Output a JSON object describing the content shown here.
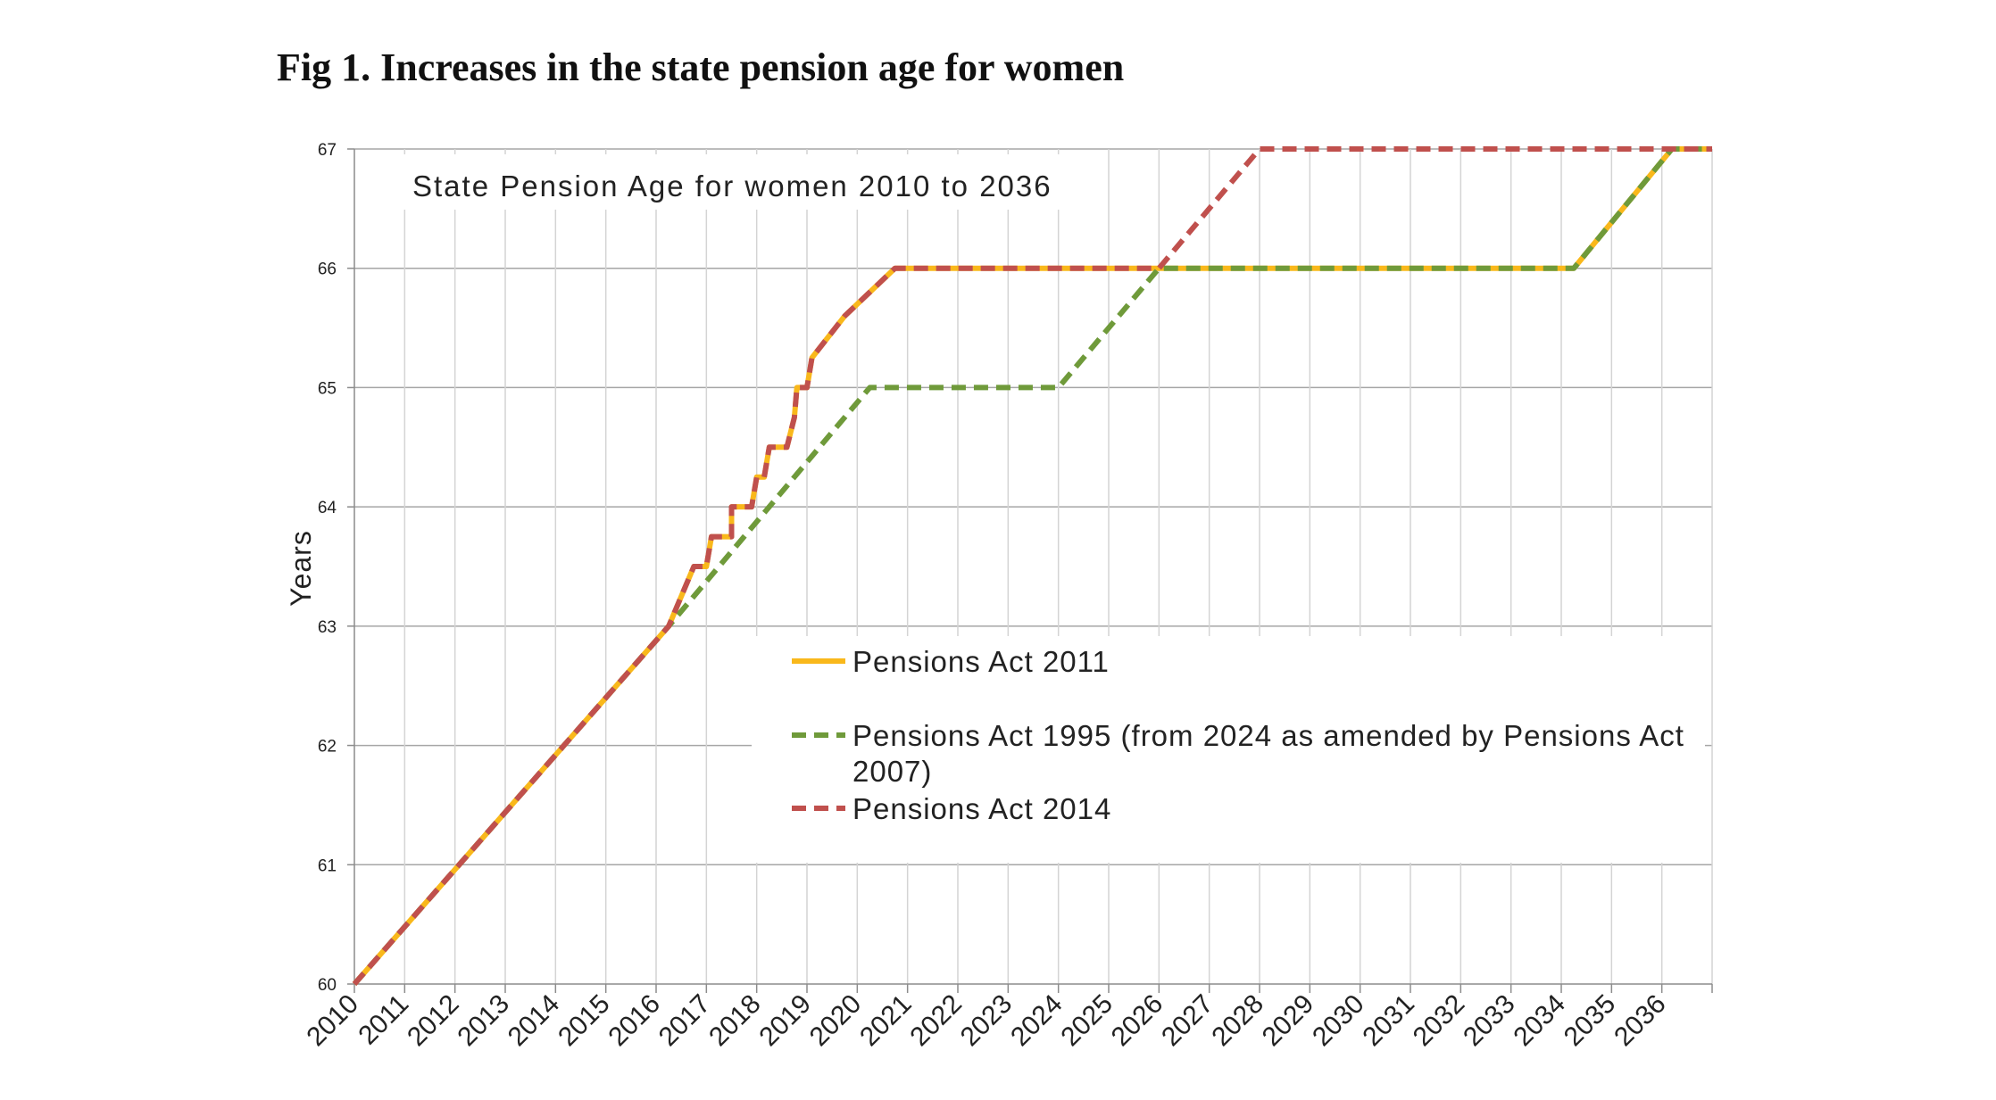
{
  "title": "Fig 1. Increases in the state pension age for women",
  "chart_data": {
    "type": "line",
    "title": "State Pension Age for women 2010 to 2036",
    "xlabel": "",
    "ylabel": "Years",
    "xlim": [
      2010,
      2037
    ],
    "ylim": [
      60,
      67
    ],
    "x_ticks": [
      "2010",
      "2011",
      "2012",
      "2013",
      "2014",
      "2015",
      "2016",
      "2017",
      "2018",
      "2019",
      "2020",
      "2021",
      "2022",
      "2023",
      "2024",
      "2025",
      "2026",
      "2027",
      "2028",
      "2029",
      "2030",
      "2031",
      "2032",
      "2033",
      "2034",
      "2035",
      "2036"
    ],
    "y_ticks": [
      "60",
      "61",
      "62",
      "63",
      "64",
      "65",
      "66",
      "67"
    ],
    "grid": true,
    "legend_position": "center-right",
    "series": [
      {
        "name": "Pensions Act 2011",
        "color": "#F9B81B",
        "style": "solid",
        "points": [
          [
            2010.0,
            60.0
          ],
          [
            2016.25,
            63.0
          ],
          [
            2016.5,
            63.25
          ],
          [
            2016.75,
            63.5
          ],
          [
            2017.0,
            63.5
          ],
          [
            2017.1,
            63.75
          ],
          [
            2017.5,
            63.75
          ],
          [
            2017.5,
            64.0
          ],
          [
            2017.9,
            64.0
          ],
          [
            2018.0,
            64.25
          ],
          [
            2018.15,
            64.25
          ],
          [
            2018.25,
            64.5
          ],
          [
            2018.6,
            64.5
          ],
          [
            2018.75,
            64.75
          ],
          [
            2018.8,
            65.0
          ],
          [
            2019.0,
            65.0
          ],
          [
            2019.1,
            65.25
          ],
          [
            2019.75,
            65.6
          ],
          [
            2020.75,
            66.0
          ],
          [
            2034.25,
            66.0
          ],
          [
            2036.2,
            67.0
          ],
          [
            2037.0,
            67.0
          ]
        ]
      },
      {
        "name": "Pensions Act 1995 (from 2024 as amended by Pensions Act 2007)",
        "color": "#6F9A3A",
        "style": "dashed",
        "points": [
          [
            2010.0,
            60.0
          ],
          [
            2016.25,
            63.0
          ],
          [
            2020.25,
            65.0
          ],
          [
            2024.0,
            65.0
          ],
          [
            2026.0,
            66.0
          ],
          [
            2034.25,
            66.0
          ],
          [
            2036.2,
            67.0
          ],
          [
            2037.0,
            67.0
          ]
        ]
      },
      {
        "name": "Pensions Act 2014",
        "color": "#C0504D",
        "style": "dashed",
        "points": [
          [
            2010.0,
            60.0
          ],
          [
            2016.25,
            63.0
          ],
          [
            2016.5,
            63.25
          ],
          [
            2016.75,
            63.5
          ],
          [
            2017.0,
            63.5
          ],
          [
            2017.1,
            63.75
          ],
          [
            2017.5,
            63.75
          ],
          [
            2017.5,
            64.0
          ],
          [
            2017.9,
            64.0
          ],
          [
            2018.0,
            64.25
          ],
          [
            2018.15,
            64.25
          ],
          [
            2018.25,
            64.5
          ],
          [
            2018.6,
            64.5
          ],
          [
            2018.75,
            64.75
          ],
          [
            2018.8,
            65.0
          ],
          [
            2019.0,
            65.0
          ],
          [
            2019.1,
            65.25
          ],
          [
            2019.75,
            65.6
          ],
          [
            2020.75,
            66.0
          ],
          [
            2026.0,
            66.0
          ],
          [
            2028.0,
            67.0
          ],
          [
            2037.0,
            67.0
          ]
        ]
      }
    ]
  }
}
